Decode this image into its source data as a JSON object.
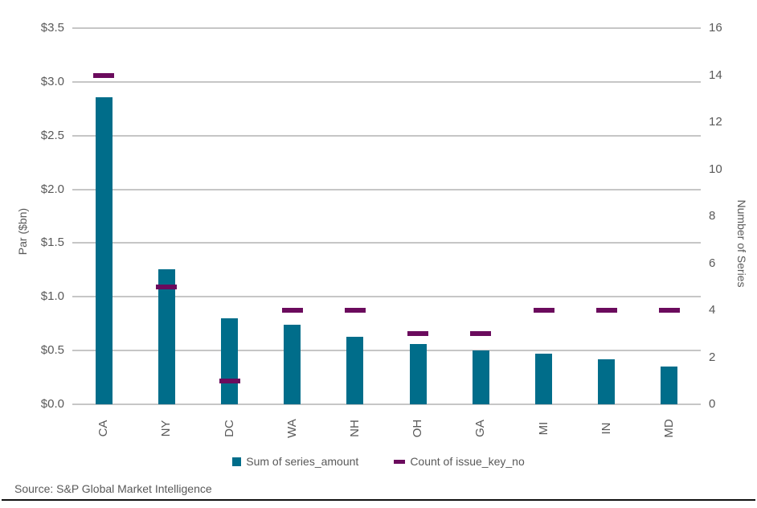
{
  "chart_data": {
    "type": "bar",
    "title": "",
    "categories": [
      "CA",
      "NY",
      "DC",
      "WA",
      "NH",
      "OH",
      "GA",
      "MI",
      "IN",
      "MD"
    ],
    "series": [
      {
        "name": "Sum of series_amount",
        "render": "bar",
        "axis": "left",
        "color": "#006D8A",
        "values": [
          2.86,
          1.26,
          0.8,
          0.74,
          0.63,
          0.56,
          0.5,
          0.47,
          0.42,
          0.35
        ]
      },
      {
        "name": "Count of issue_key_no",
        "render": "dash",
        "axis": "right",
        "color": "#6B0B5D",
        "values": [
          14,
          5,
          1,
          4,
          4,
          3,
          3,
          4,
          4,
          4
        ]
      }
    ],
    "left_axis": {
      "label": "Par ($bn)",
      "min": 0,
      "max": 3.5,
      "tick_labels": [
        "$3.5",
        "$3.0",
        "$2.5",
        "$2.0",
        "$1.5",
        "$1.0",
        "$0.5",
        "$0.0"
      ],
      "tick_values": [
        3.5,
        3.0,
        2.5,
        2.0,
        1.5,
        1.0,
        0.5,
        0.0
      ]
    },
    "right_axis": {
      "label": "Number of Series",
      "min": 0,
      "max": 16,
      "tick_labels": [
        "16",
        "14",
        "12",
        "10",
        "8",
        "6",
        "4",
        "2",
        "0"
      ],
      "tick_values": [
        16,
        14,
        12,
        10,
        8,
        6,
        4,
        2,
        0
      ]
    },
    "grid": "horizontal",
    "legend_position": "bottom"
  },
  "legend": {
    "items": [
      {
        "label": "Sum of series_amount",
        "marker": "square",
        "color": "#006D8A"
      },
      {
        "label": "Count of issue_key_no",
        "marker": "dash",
        "color": "#6B0B5D"
      }
    ]
  },
  "footer": {
    "source": "Source: S&P Global Market Intelligence"
  },
  "colors": {
    "bar": "#006D8A",
    "dash": "#6B0B5D",
    "gridline": "#C6C6C6",
    "axis_text": "#595959",
    "bottom_rule": "#111111"
  }
}
